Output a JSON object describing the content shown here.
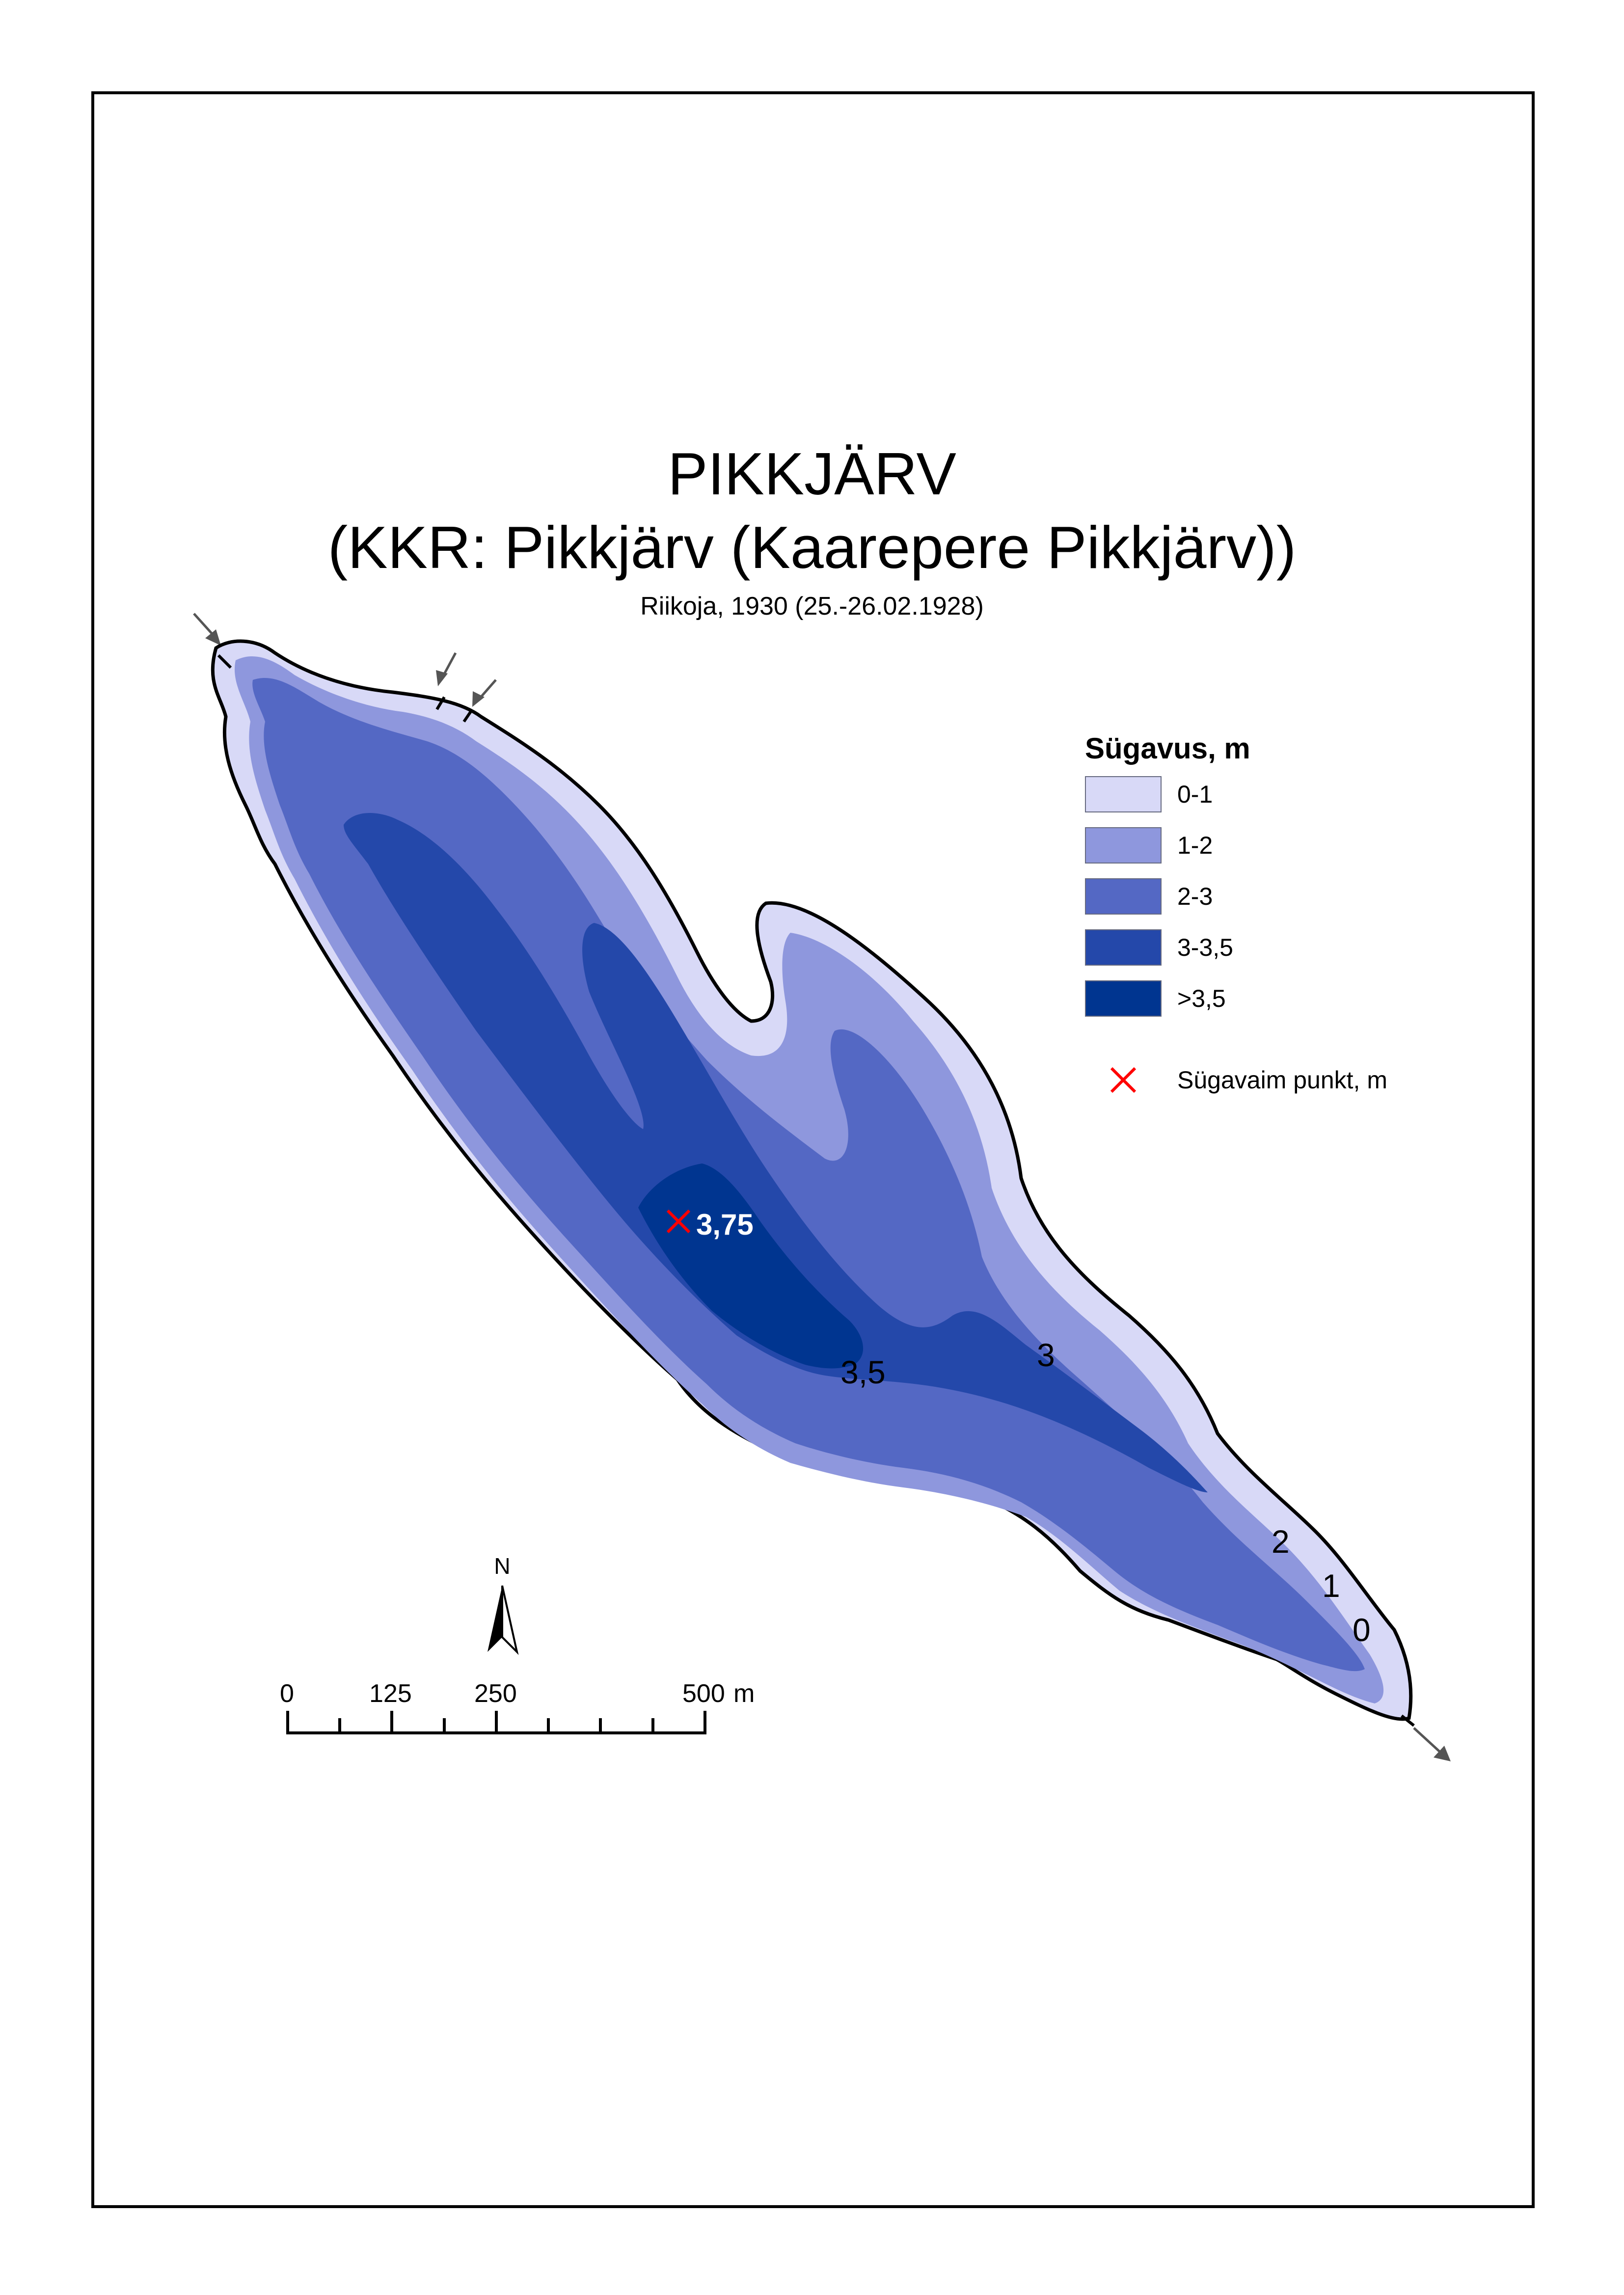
{
  "map": {
    "title": "PIKKJÄRV",
    "subtitle": "(KKR: Pikkjärv (Kaarepere Pikkjärv))",
    "source": "Riikoja, 1930 (25.-26.02.1928)"
  },
  "legend": {
    "title": "Sügavus, m",
    "classes": [
      {
        "label": "0-1",
        "color": "#d8d9f7"
      },
      {
        "label": "1-2",
        "color": "#8e97dd"
      },
      {
        "label": "2-3",
        "color": "#5468c4"
      },
      {
        "label": "3-3,5",
        "color": "#2448aa"
      },
      {
        "label": ">3,5",
        "color": "#003590"
      }
    ],
    "deepest_point_label": "Sügavaim punkt, m",
    "deepest_point_color": "#ff0000"
  },
  "deepest_point": {
    "depth_label": "3,75"
  },
  "contour_labels": [
    "3,5",
    "3",
    "2",
    "1",
    "0"
  ],
  "north_arrow": {
    "label": "N"
  },
  "scale_bar": {
    "ticks": [
      "0",
      "125",
      "250",
      "500"
    ],
    "unit": "m"
  }
}
